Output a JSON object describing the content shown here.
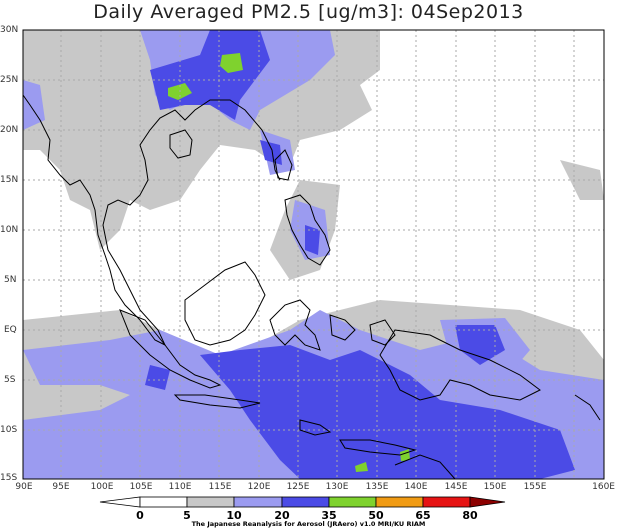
{
  "title": "Daily Averaged PM2.5 [ug/m3]: 04Sep2013",
  "map": {
    "lon_labels": [
      "90E",
      "95E",
      "100E",
      "105E",
      "110E",
      "115E",
      "120E",
      "125E",
      "130E",
      "135E",
      "140E",
      "145E",
      "150E",
      "155E",
      "160E"
    ],
    "lat_labels": [
      "30N",
      "25N",
      "20N",
      "15N",
      "10N",
      "5N",
      "EQ",
      "5S",
      "10S",
      "15S"
    ]
  },
  "colorbar": {
    "levels": [
      "0",
      "5",
      "10",
      "20",
      "35",
      "50",
      "65",
      "80"
    ],
    "colors": [
      "#ffffff",
      "#ffffff",
      "#c8c8c8",
      "#9b9bf0",
      "#4b4be6",
      "#7fd22e",
      "#f09b14",
      "#e61414",
      "#8c0000"
    ]
  },
  "credit": "The Japanese Reanalysis for Aerosol (JRAero) v1.0  MRI/KU  RIAM"
}
